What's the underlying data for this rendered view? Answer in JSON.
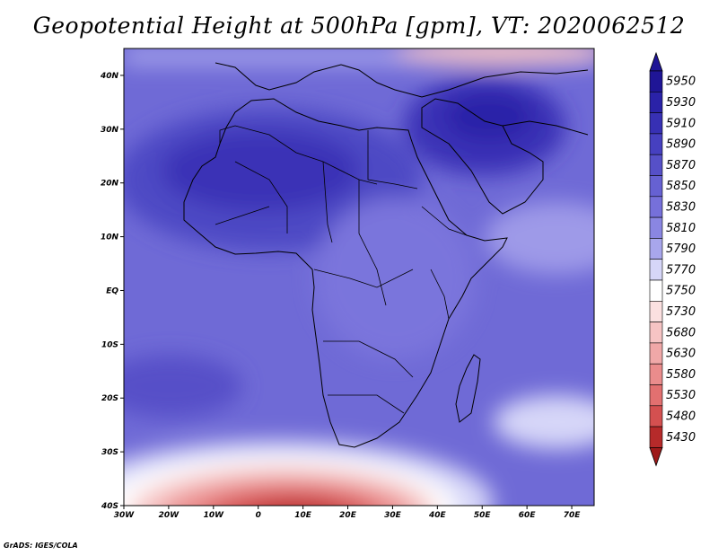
{
  "title": "Geopotential Height at 500hPa [gpm], VT: 2020062512",
  "credit": "GrADS: IGES/COLA",
  "map": {
    "lon_range": [
      -30,
      75
    ],
    "lat_range": [
      -40,
      45
    ],
    "lat_labels": [
      {
        "value": 40,
        "text": "40N"
      },
      {
        "value": 30,
        "text": "30N"
      },
      {
        "value": 20,
        "text": "20N"
      },
      {
        "value": 10,
        "text": "10N"
      },
      {
        "value": 0,
        "text": "EQ"
      },
      {
        "value": -10,
        "text": "10S"
      },
      {
        "value": -20,
        "text": "20S"
      },
      {
        "value": -30,
        "text": "30S"
      },
      {
        "value": -40,
        "text": "40S"
      }
    ],
    "lon_labels": [
      {
        "value": -30,
        "text": "30W"
      },
      {
        "value": -20,
        "text": "20W"
      },
      {
        "value": -10,
        "text": "10W"
      },
      {
        "value": 0,
        "text": "0"
      },
      {
        "value": 10,
        "text": "10E"
      },
      {
        "value": 20,
        "text": "20E"
      },
      {
        "value": 30,
        "text": "30E"
      },
      {
        "value": 40,
        "text": "40E"
      },
      {
        "value": 50,
        "text": "50E"
      },
      {
        "value": 60,
        "text": "60E"
      },
      {
        "value": 70,
        "text": "70E"
      }
    ]
  },
  "colorbar": {
    "levels": [
      {
        "label": "5950",
        "color": "#1f1596"
      },
      {
        "label": "5930",
        "color": "#2a22a8"
      },
      {
        "label": "5910",
        "color": "#3730b4"
      },
      {
        "label": "5890",
        "color": "#4640c0"
      },
      {
        "label": "5870",
        "color": "#5650c8"
      },
      {
        "label": "5850",
        "color": "#6661d2"
      },
      {
        "label": "5830",
        "color": "#7670da"
      },
      {
        "label": "5810",
        "color": "#8a86e2"
      },
      {
        "label": "5790",
        "color": "#a8a6ec"
      },
      {
        "label": "5770",
        "color": "#d6d6f8"
      },
      {
        "label": "5750",
        "color": "#ffffff"
      },
      {
        "label": "5730",
        "color": "#fbe0e0"
      },
      {
        "label": "5680",
        "color": "#f6c4c4"
      },
      {
        "label": "5630",
        "color": "#f0a8a8"
      },
      {
        "label": "5580",
        "color": "#ea8c8c"
      },
      {
        "label": "5530",
        "color": "#e27070"
      },
      {
        "label": "5480",
        "color": "#d45050"
      },
      {
        "label": "5430",
        "color": "#b62a2a"
      }
    ],
    "bottom_color": "#9e1a1a"
  }
}
